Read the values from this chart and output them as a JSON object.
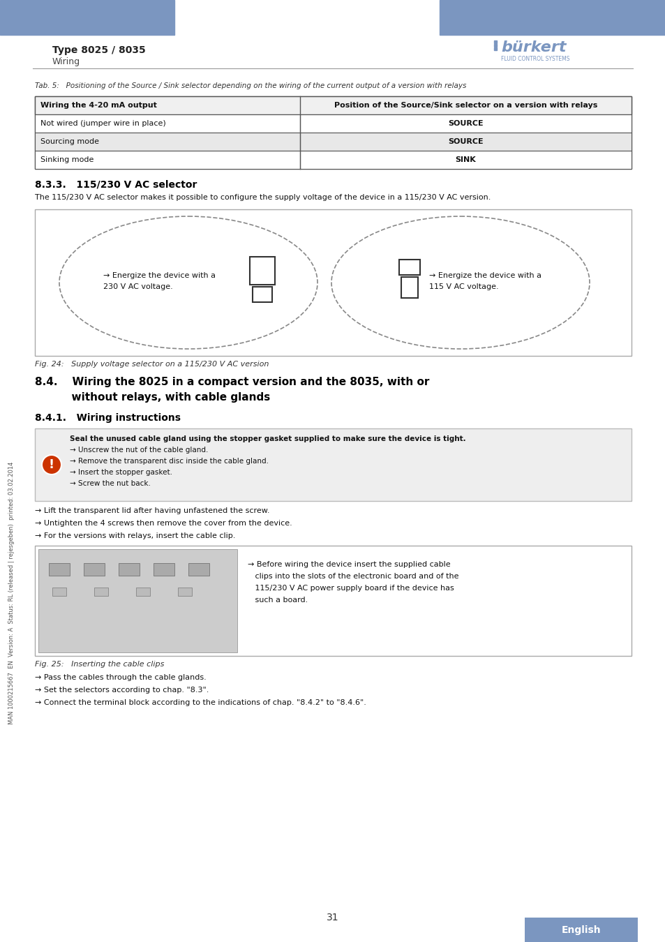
{
  "page_bg": "#ffffff",
  "header_bar_color": "#7B96C0",
  "header_type_text": "Type 8025 / 8035",
  "header_sub_text": "Wiring",
  "burkert_color": "#7B96C0",
  "divider_color": "#999999",
  "tab5_caption": "Tab. 5:   Positioning of the Source / Sink selector depending on the wiring of the current output of a version with relays",
  "table_header_col1": "Wiring the 4-20 mA output",
  "table_header_col2": "Position of the Source/Sink selector on a version with relays",
  "table_rows": [
    [
      "Not wired (jumper wire in place)",
      "SOURCE",
      "#ffffff"
    ],
    [
      "Sourcing mode",
      "SOURCE",
      "#e8e8e8"
    ],
    [
      "Sinking mode",
      "SINK",
      "#ffffff"
    ]
  ],
  "section_833_title": "8.3.3.   115/230 V AC selector",
  "section_833_body": "The 115/230 V AC selector makes it possible to configure the supply voltage of the device in a 115/230 V AC version.",
  "fig24_caption": "Fig. 24:   Supply voltage selector on a 115/230 V AC version",
  "left_circle_text1": "→ Energize the device with a",
  "left_circle_text2": "230 V AC voltage.",
  "right_circle_text1": "→ Energize the device with a",
  "right_circle_text2": "115 V AC voltage.",
  "section_84_title1": "8.4.    Wiring the 8025 in a compact version and the 8035, with or",
  "section_84_title2": "          without relays, with cable glands",
  "section_841_title": "8.4.1.   Wiring instructions",
  "warning_box_text": [
    "Seal the unused cable gland using the stopper gasket supplied to make sure the device is tight.",
    "→ Unscrew the nut of the cable gland.",
    "→ Remove the transparent disc inside the cable gland.",
    "→ Insert the stopper gasket.",
    "→ Screw the nut back."
  ],
  "bullet_lines": [
    "→ Lift the transparent lid after having unfastened the screw.",
    "→ Untighten the 4 screws then remove the cover from the device.",
    "→ For the versions with relays, insert the cable clip."
  ],
  "fig25_right_text": [
    "→ Before wiring the device insert the supplied cable",
    "   clips into the slots of the electronic board and of the",
    "   115/230 V AC power supply board if the device has",
    "   such a board."
  ],
  "fig25_caption": "Fig. 25:   Inserting the cable clips",
  "bottom_bullets": [
    "→ Pass the cables through the cable glands.",
    "→ Set the selectors according to chap. \"8.3\".",
    "→ Connect the terminal block according to the indications of chap. \"8.4.2\" to \"8.4.6\"."
  ],
  "page_number": "31",
  "footer_lang": "English",
  "footer_bg": "#7B96C0",
  "side_text": "MAN 1000215667  EN  Version: A  Status: RL (released | rejesgeben)  printed: 03.02.2014",
  "text_color": "#1a1a1a",
  "table_border_color": "#555555",
  "section_title_color": "#000000"
}
